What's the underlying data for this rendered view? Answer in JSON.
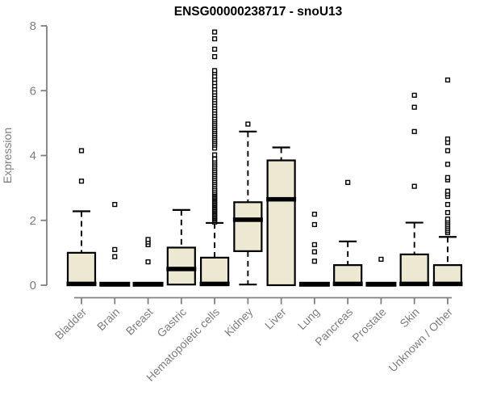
{
  "title": "ENSG00000238717 - snoU13",
  "colors": {
    "box_fill": "#EDE8D1",
    "box_stroke": "#000000",
    "median": "#000000",
    "axis": "#808080",
    "tick_label": "#7E7E7E",
    "title": "#000000",
    "background": "#FFFFFF"
  },
  "chart_data": {
    "type": "boxplot",
    "title": "ENSG00000238717 - snoU13",
    "xlabel": "",
    "ylabel": "Expression",
    "ylim": [
      0,
      8
    ],
    "yticks": [
      0,
      2,
      4,
      6,
      8
    ],
    "grid": false,
    "legend": false,
    "categories": [
      "Bladder",
      "Brain",
      "Breast",
      "Gastric",
      "Hematopoietic cells",
      "Kidney",
      "Liver",
      "Lung",
      "Pancreas",
      "Prostate",
      "Skin",
      "Unknown / Other"
    ],
    "series": [
      {
        "name": "Bladder",
        "q1": 0,
        "median": 0.04,
        "q3": 1.0,
        "whisker_low": 0,
        "whisker_high": 2.28,
        "outliers": [
          3.21,
          4.15
        ]
      },
      {
        "name": "Brain",
        "q1": 0,
        "median": 0.03,
        "q3": 0.06,
        "whisker_low": 0,
        "whisker_high": 0.06,
        "outliers": [
          0.88,
          1.1,
          2.49
        ]
      },
      {
        "name": "Breast",
        "q1": 0,
        "median": 0.03,
        "q3": 0.06,
        "whisker_low": 0,
        "whisker_high": 0.06,
        "outliers": [
          0.72,
          1.25,
          1.33,
          1.41
        ]
      },
      {
        "name": "Gastric",
        "q1": 0.02,
        "median": 0.5,
        "q3": 1.16,
        "whisker_low": 0.02,
        "whisker_high": 2.32,
        "outliers": []
      },
      {
        "name": "Hematopoietic cells",
        "q1": 0,
        "median": 0.04,
        "q3": 0.85,
        "whisker_low": 0,
        "whisker_high": 1.92,
        "outliers": [
          1.95,
          1.99,
          2.03,
          2.07,
          2.11,
          2.15,
          2.19,
          2.23,
          2.27,
          2.31,
          2.35,
          2.39,
          2.43,
          2.47,
          2.51,
          2.55,
          2.59,
          2.63,
          2.67,
          2.71,
          2.75,
          2.79,
          2.83,
          2.87,
          2.93,
          2.99,
          3.05,
          3.11,
          3.17,
          3.23,
          3.29,
          3.35,
          3.41,
          3.47,
          3.53,
          3.59,
          3.65,
          3.71,
          3.77,
          3.83,
          3.89,
          4.02,
          4.23,
          4.32,
          4.38,
          4.44,
          4.5,
          4.56,
          4.62,
          4.68,
          4.74,
          4.8,
          4.86,
          4.92,
          4.98,
          5.04,
          5.1,
          5.16,
          5.24,
          5.32,
          5.4,
          5.48,
          5.56,
          5.64,
          5.72,
          5.8,
          5.88,
          5.96,
          6.05,
          6.15,
          6.25,
          6.35,
          6.45,
          6.55,
          6.62,
          7.05,
          7.28,
          7.6,
          7.81
        ]
      },
      {
        "name": "Kidney",
        "q1": 1.05,
        "median": 2.02,
        "q3": 2.56,
        "whisker_low": 0.02,
        "whisker_high": 4.74,
        "outliers": [
          4.97
        ]
      },
      {
        "name": "Liver",
        "q1": 0,
        "median": 2.65,
        "q3": 3.85,
        "whisker_low": 0,
        "whisker_high": 4.25,
        "outliers": []
      },
      {
        "name": "Lung",
        "q1": 0,
        "median": 0.03,
        "q3": 0.06,
        "whisker_low": 0,
        "whisker_high": 0.06,
        "outliers": [
          0.74,
          1.03,
          1.25,
          1.87,
          2.19
        ]
      },
      {
        "name": "Pancreas",
        "q1": 0,
        "median": 0.04,
        "q3": 0.62,
        "whisker_low": 0,
        "whisker_high": 1.35,
        "outliers": [
          3.17
        ]
      },
      {
        "name": "Prostate",
        "q1": 0,
        "median": 0.03,
        "q3": 0.06,
        "whisker_low": 0,
        "whisker_high": 0.06,
        "outliers": [
          0.8
        ]
      },
      {
        "name": "Skin",
        "q1": 0,
        "median": 0.04,
        "q3": 0.95,
        "whisker_low": 0,
        "whisker_high": 1.93,
        "outliers": [
          3.05,
          4.74,
          5.49,
          5.86
        ]
      },
      {
        "name": "Unknown / Other",
        "q1": 0,
        "median": 0.04,
        "q3": 0.62,
        "whisker_low": 0,
        "whisker_high": 1.49,
        "outliers": [
          1.62,
          1.68,
          1.74,
          1.8,
          1.86,
          1.92,
          1.98,
          2.04,
          2.24,
          2.49,
          2.74,
          2.82,
          2.9,
          3.25,
          3.32,
          3.73,
          4.15,
          4.4,
          4.51,
          6.33
        ]
      }
    ]
  },
  "layout_hints": {
    "whisker_style": "dashed",
    "outlier_marker": "open-square",
    "x_label_rotation_deg": 45
  }
}
